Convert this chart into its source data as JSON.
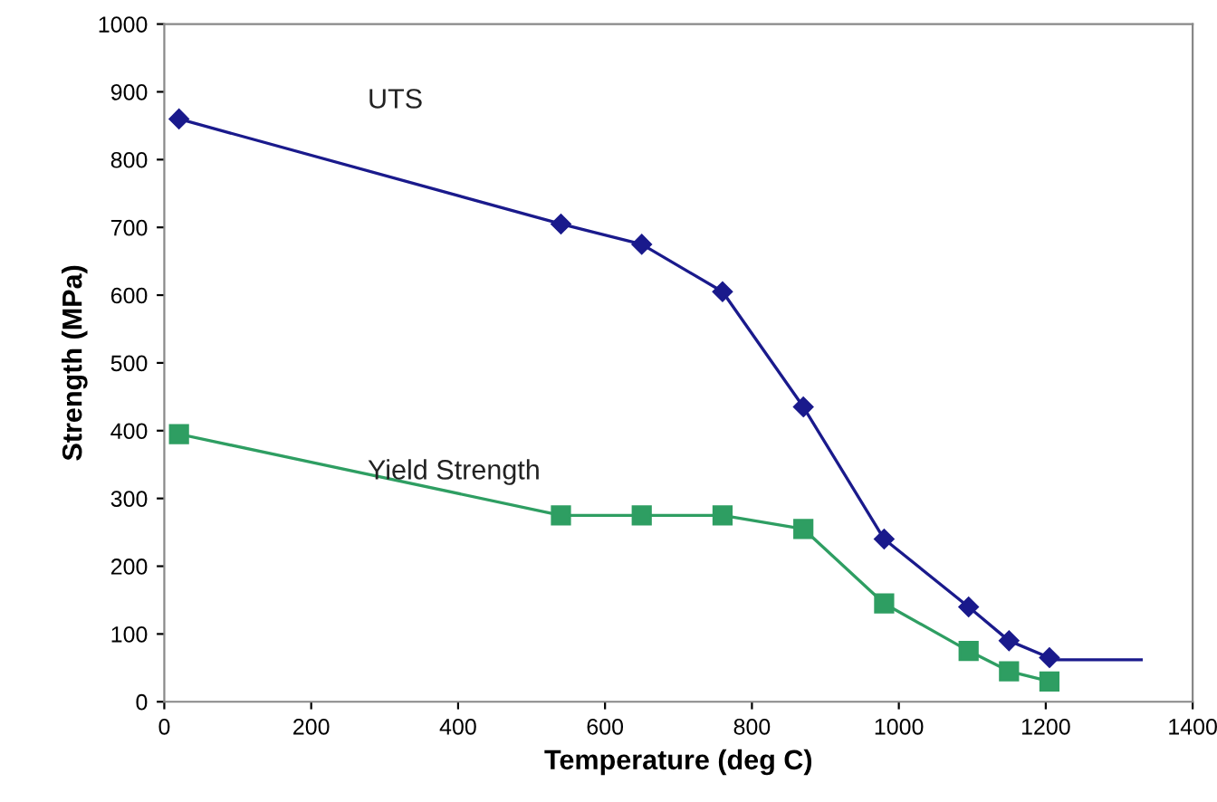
{
  "chart_data": {
    "type": "line",
    "xlabel": "Temperature (deg C)",
    "ylabel": "Strength (MPa)",
    "xlim": [
      0,
      1400
    ],
    "xticks": [
      0,
      200,
      400,
      600,
      800,
      1000,
      1200,
      1400
    ],
    "ylim": [
      0,
      1000
    ],
    "yticks": [
      0,
      100,
      200,
      300,
      400,
      500,
      600,
      700,
      800,
      900,
      1000
    ],
    "grid": false,
    "legend": false,
    "series": [
      {
        "name": "UTS",
        "color": "#1a1a8c",
        "marker": "diamond",
        "x": [
          20,
          540,
          650,
          760,
          870,
          980,
          1095,
          1150,
          1205
        ],
        "values": [
          860,
          705,
          675,
          605,
          435,
          240,
          140,
          90,
          65
        ]
      },
      {
        "color": "#1a1a8c",
        "marker": "none",
        "x": [
          1205,
          1330
        ],
        "values": [
          62,
          62
        ]
      },
      {
        "name": "Yield Strength",
        "color": "#2e9e62",
        "marker": "square",
        "x": [
          20,
          540,
          650,
          760,
          870,
          980,
          1095,
          1150,
          1205
        ],
        "values": [
          395,
          275,
          275,
          275,
          255,
          145,
          75,
          45,
          30
        ]
      }
    ]
  }
}
